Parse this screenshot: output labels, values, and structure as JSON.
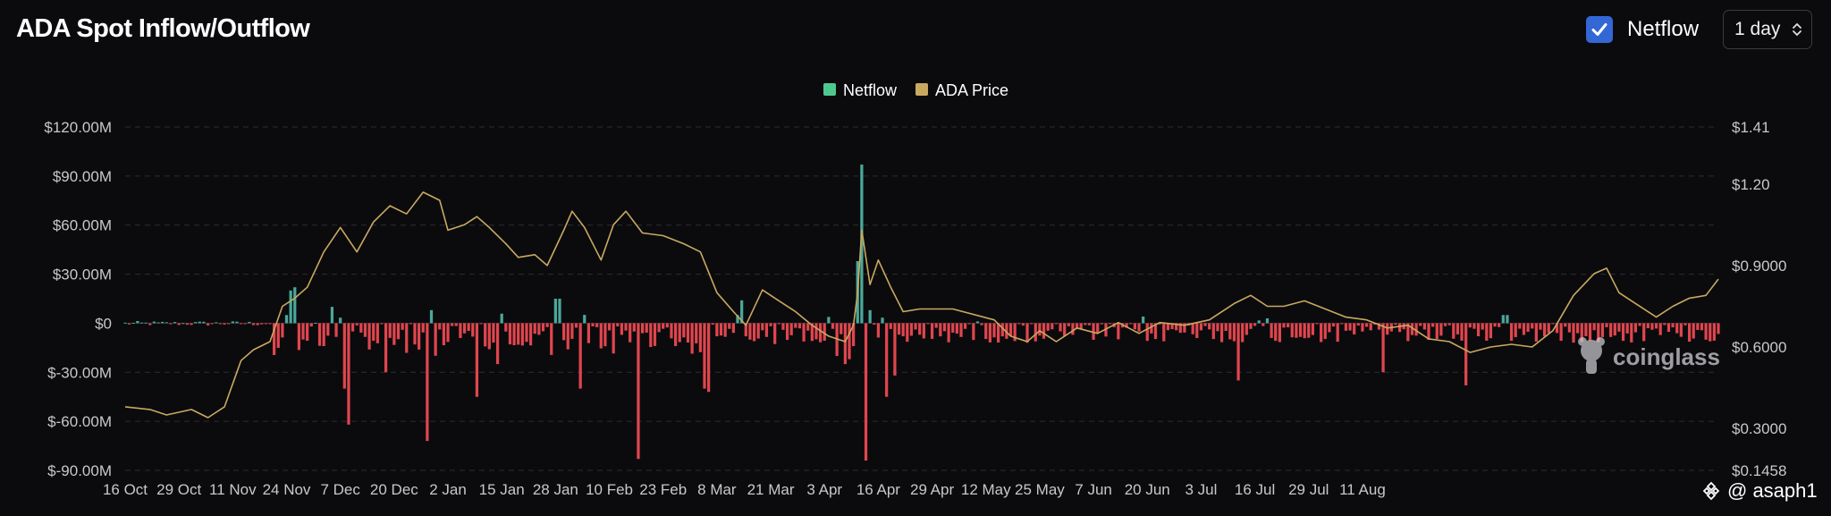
{
  "header": {
    "title": "ADA Spot Inflow/Outflow",
    "netflow_toggle_label": "Netflow",
    "netflow_checked": true,
    "interval_value": "1 day"
  },
  "watermark": {
    "brand": "coinglass",
    "handle": "@ asaph1"
  },
  "colors": {
    "netflow_positive": "#4aa89a",
    "netflow_negative": "#e0464e",
    "price_line": "#c9a95f",
    "legend_netflow": "#4ec98e",
    "legend_price": "#c9a95f",
    "grid": "#2c2c32",
    "checkbox": "#3367d6"
  },
  "chart_data": {
    "type": "bar",
    "legend_position": "top-center",
    "grid": true,
    "series": [
      {
        "name": "Netflow",
        "type": "bar",
        "axis": "left"
      },
      {
        "name": "ADA Price",
        "type": "line",
        "axis": "right"
      }
    ],
    "x_tick_labels": [
      "16 Oct",
      "29 Oct",
      "11 Nov",
      "24 Nov",
      "7 Dec",
      "20 Dec",
      "2 Jan",
      "15 Jan",
      "28 Jan",
      "10 Feb",
      "23 Feb",
      "8 Mar",
      "21 Mar",
      "3 Apr",
      "16 Apr",
      "29 Apr",
      "12 May",
      "25 May",
      "7 Jun",
      "20 Jun",
      "3 Jul",
      "16 Jul",
      "29 Jul",
      "11 Aug"
    ],
    "left_axis": {
      "ylim": [
        -90,
        120
      ],
      "ticks": [
        120,
        90,
        60,
        30,
        0,
        -30,
        -60,
        -90
      ],
      "tick_labels": [
        "$120.00M",
        "$90.00M",
        "$60.00M",
        "$30.00M",
        "$0",
        "$-30.00M",
        "$-60.00M",
        "$-90.00M"
      ]
    },
    "right_axis": {
      "ylim": [
        0.1458,
        1.41
      ],
      "ticks": [
        1.41,
        1.2,
        0.9,
        0.6,
        0.3,
        0.1458
      ],
      "tick_labels": [
        "$1.41",
        "$1.20",
        "$0.9000",
        "$0.6000",
        "$0.3000",
        "$0.1458"
      ]
    },
    "netflow_key_days": [
      {
        "day": 39,
        "value": 5
      },
      {
        "day": 40,
        "value": 20
      },
      {
        "day": 41,
        "value": 22
      },
      {
        "day": 43,
        "value": -10
      },
      {
        "day": 50,
        "value": 10
      },
      {
        "day": 53,
        "value": -40
      },
      {
        "day": 54,
        "value": -62
      },
      {
        "day": 63,
        "value": -30
      },
      {
        "day": 73,
        "value": -72
      },
      {
        "day": 74,
        "value": 8
      },
      {
        "day": 85,
        "value": -45
      },
      {
        "day": 90,
        "value": -25
      },
      {
        "day": 104,
        "value": 15
      },
      {
        "day": 105,
        "value": 15
      },
      {
        "day": 110,
        "value": -40
      },
      {
        "day": 124,
        "value": -83
      },
      {
        "day": 140,
        "value": -40
      },
      {
        "day": 141,
        "value": -42
      },
      {
        "day": 148,
        "value": 5
      },
      {
        "day": 149,
        "value": 14
      },
      {
        "day": 150,
        "value": -8
      },
      {
        "day": 172,
        "value": -20
      },
      {
        "day": 174,
        "value": -25
      },
      {
        "day": 175,
        "value": -22
      },
      {
        "day": 176,
        "value": -14
      },
      {
        "day": 177,
        "value": 38
      },
      {
        "day": 178,
        "value": 97
      },
      {
        "day": 179,
        "value": -84
      },
      {
        "day": 180,
        "value": 8
      },
      {
        "day": 184,
        "value": -45
      },
      {
        "day": 186,
        "value": -32
      },
      {
        "day": 269,
        "value": -35
      },
      {
        "day": 304,
        "value": -30
      },
      {
        "day": 324,
        "value": -38
      },
      {
        "day": 333,
        "value": 5
      },
      {
        "day": 334,
        "value": 5
      }
    ],
    "price_key_points": [
      {
        "day": 0,
        "price": 0.38
      },
      {
        "day": 6,
        "price": 0.37
      },
      {
        "day": 10,
        "price": 0.35
      },
      {
        "day": 16,
        "price": 0.37
      },
      {
        "day": 20,
        "price": 0.34
      },
      {
        "day": 24,
        "price": 0.38
      },
      {
        "day": 28,
        "price": 0.55
      },
      {
        "day": 31,
        "price": 0.59
      },
      {
        "day": 35,
        "price": 0.62
      },
      {
        "day": 38,
        "price": 0.75
      },
      {
        "day": 41,
        "price": 0.78
      },
      {
        "day": 44,
        "price": 0.82
      },
      {
        "day": 48,
        "price": 0.95
      },
      {
        "day": 52,
        "price": 1.04
      },
      {
        "day": 56,
        "price": 0.95
      },
      {
        "day": 60,
        "price": 1.06
      },
      {
        "day": 64,
        "price": 1.12
      },
      {
        "day": 68,
        "price": 1.09
      },
      {
        "day": 72,
        "price": 1.17
      },
      {
        "day": 76,
        "price": 1.14
      },
      {
        "day": 78,
        "price": 1.03
      },
      {
        "day": 82,
        "price": 1.05
      },
      {
        "day": 85,
        "price": 1.08
      },
      {
        "day": 88,
        "price": 1.04
      },
      {
        "day": 92,
        "price": 0.98
      },
      {
        "day": 95,
        "price": 0.93
      },
      {
        "day": 99,
        "price": 0.94
      },
      {
        "day": 102,
        "price": 0.9
      },
      {
        "day": 106,
        "price": 1.03
      },
      {
        "day": 108,
        "price": 1.1
      },
      {
        "day": 111,
        "price": 1.04
      },
      {
        "day": 115,
        "price": 0.92
      },
      {
        "day": 118,
        "price": 1.05
      },
      {
        "day": 121,
        "price": 1.1
      },
      {
        "day": 125,
        "price": 1.02
      },
      {
        "day": 130,
        "price": 1.01
      },
      {
        "day": 135,
        "price": 0.98
      },
      {
        "day": 139,
        "price": 0.95
      },
      {
        "day": 143,
        "price": 0.8
      },
      {
        "day": 147,
        "price": 0.73
      },
      {
        "day": 150,
        "price": 0.68
      },
      {
        "day": 154,
        "price": 0.81
      },
      {
        "day": 158,
        "price": 0.77
      },
      {
        "day": 162,
        "price": 0.73
      },
      {
        "day": 166,
        "price": 0.68
      },
      {
        "day": 170,
        "price": 0.64
      },
      {
        "day": 174,
        "price": 0.62
      },
      {
        "day": 176,
        "price": 0.68
      },
      {
        "day": 177,
        "price": 0.8
      },
      {
        "day": 178,
        "price": 1.03
      },
      {
        "day": 180,
        "price": 0.83
      },
      {
        "day": 182,
        "price": 0.92
      },
      {
        "day": 185,
        "price": 0.82
      },
      {
        "day": 188,
        "price": 0.73
      },
      {
        "day": 192,
        "price": 0.74
      },
      {
        "day": 200,
        "price": 0.74
      },
      {
        "day": 210,
        "price": 0.7
      },
      {
        "day": 214,
        "price": 0.64
      },
      {
        "day": 218,
        "price": 0.62
      },
      {
        "day": 221,
        "price": 0.66
      },
      {
        "day": 225,
        "price": 0.62
      },
      {
        "day": 230,
        "price": 0.67
      },
      {
        "day": 235,
        "price": 0.65
      },
      {
        "day": 240,
        "price": 0.69
      },
      {
        "day": 245,
        "price": 0.65
      },
      {
        "day": 250,
        "price": 0.69
      },
      {
        "day": 256,
        "price": 0.68
      },
      {
        "day": 262,
        "price": 0.7
      },
      {
        "day": 268,
        "price": 0.76
      },
      {
        "day": 272,
        "price": 0.79
      },
      {
        "day": 276,
        "price": 0.75
      },
      {
        "day": 280,
        "price": 0.75
      },
      {
        "day": 285,
        "price": 0.77
      },
      {
        "day": 290,
        "price": 0.74
      },
      {
        "day": 295,
        "price": 0.71
      },
      {
        "day": 300,
        "price": 0.7
      },
      {
        "day": 305,
        "price": 0.67
      },
      {
        "day": 310,
        "price": 0.68
      },
      {
        "day": 315,
        "price": 0.63
      },
      {
        "day": 320,
        "price": 0.62
      },
      {
        "day": 325,
        "price": 0.58
      },
      {
        "day": 330,
        "price": 0.6
      },
      {
        "day": 335,
        "price": 0.61
      },
      {
        "day": 340,
        "price": 0.6
      },
      {
        "day": 345,
        "price": 0.66
      },
      {
        "day": 350,
        "price": 0.79
      },
      {
        "day": 355,
        "price": 0.87
      },
      {
        "day": 358,
        "price": 0.89
      },
      {
        "day": 361,
        "price": 0.8
      },
      {
        "day": 365,
        "price": 0.76
      },
      {
        "day": 370,
        "price": 0.71
      },
      {
        "day": 374,
        "price": 0.75
      },
      {
        "day": 378,
        "price": 0.78
      },
      {
        "day": 382,
        "price": 0.79
      },
      {
        "day": 385,
        "price": 0.85
      }
    ]
  }
}
